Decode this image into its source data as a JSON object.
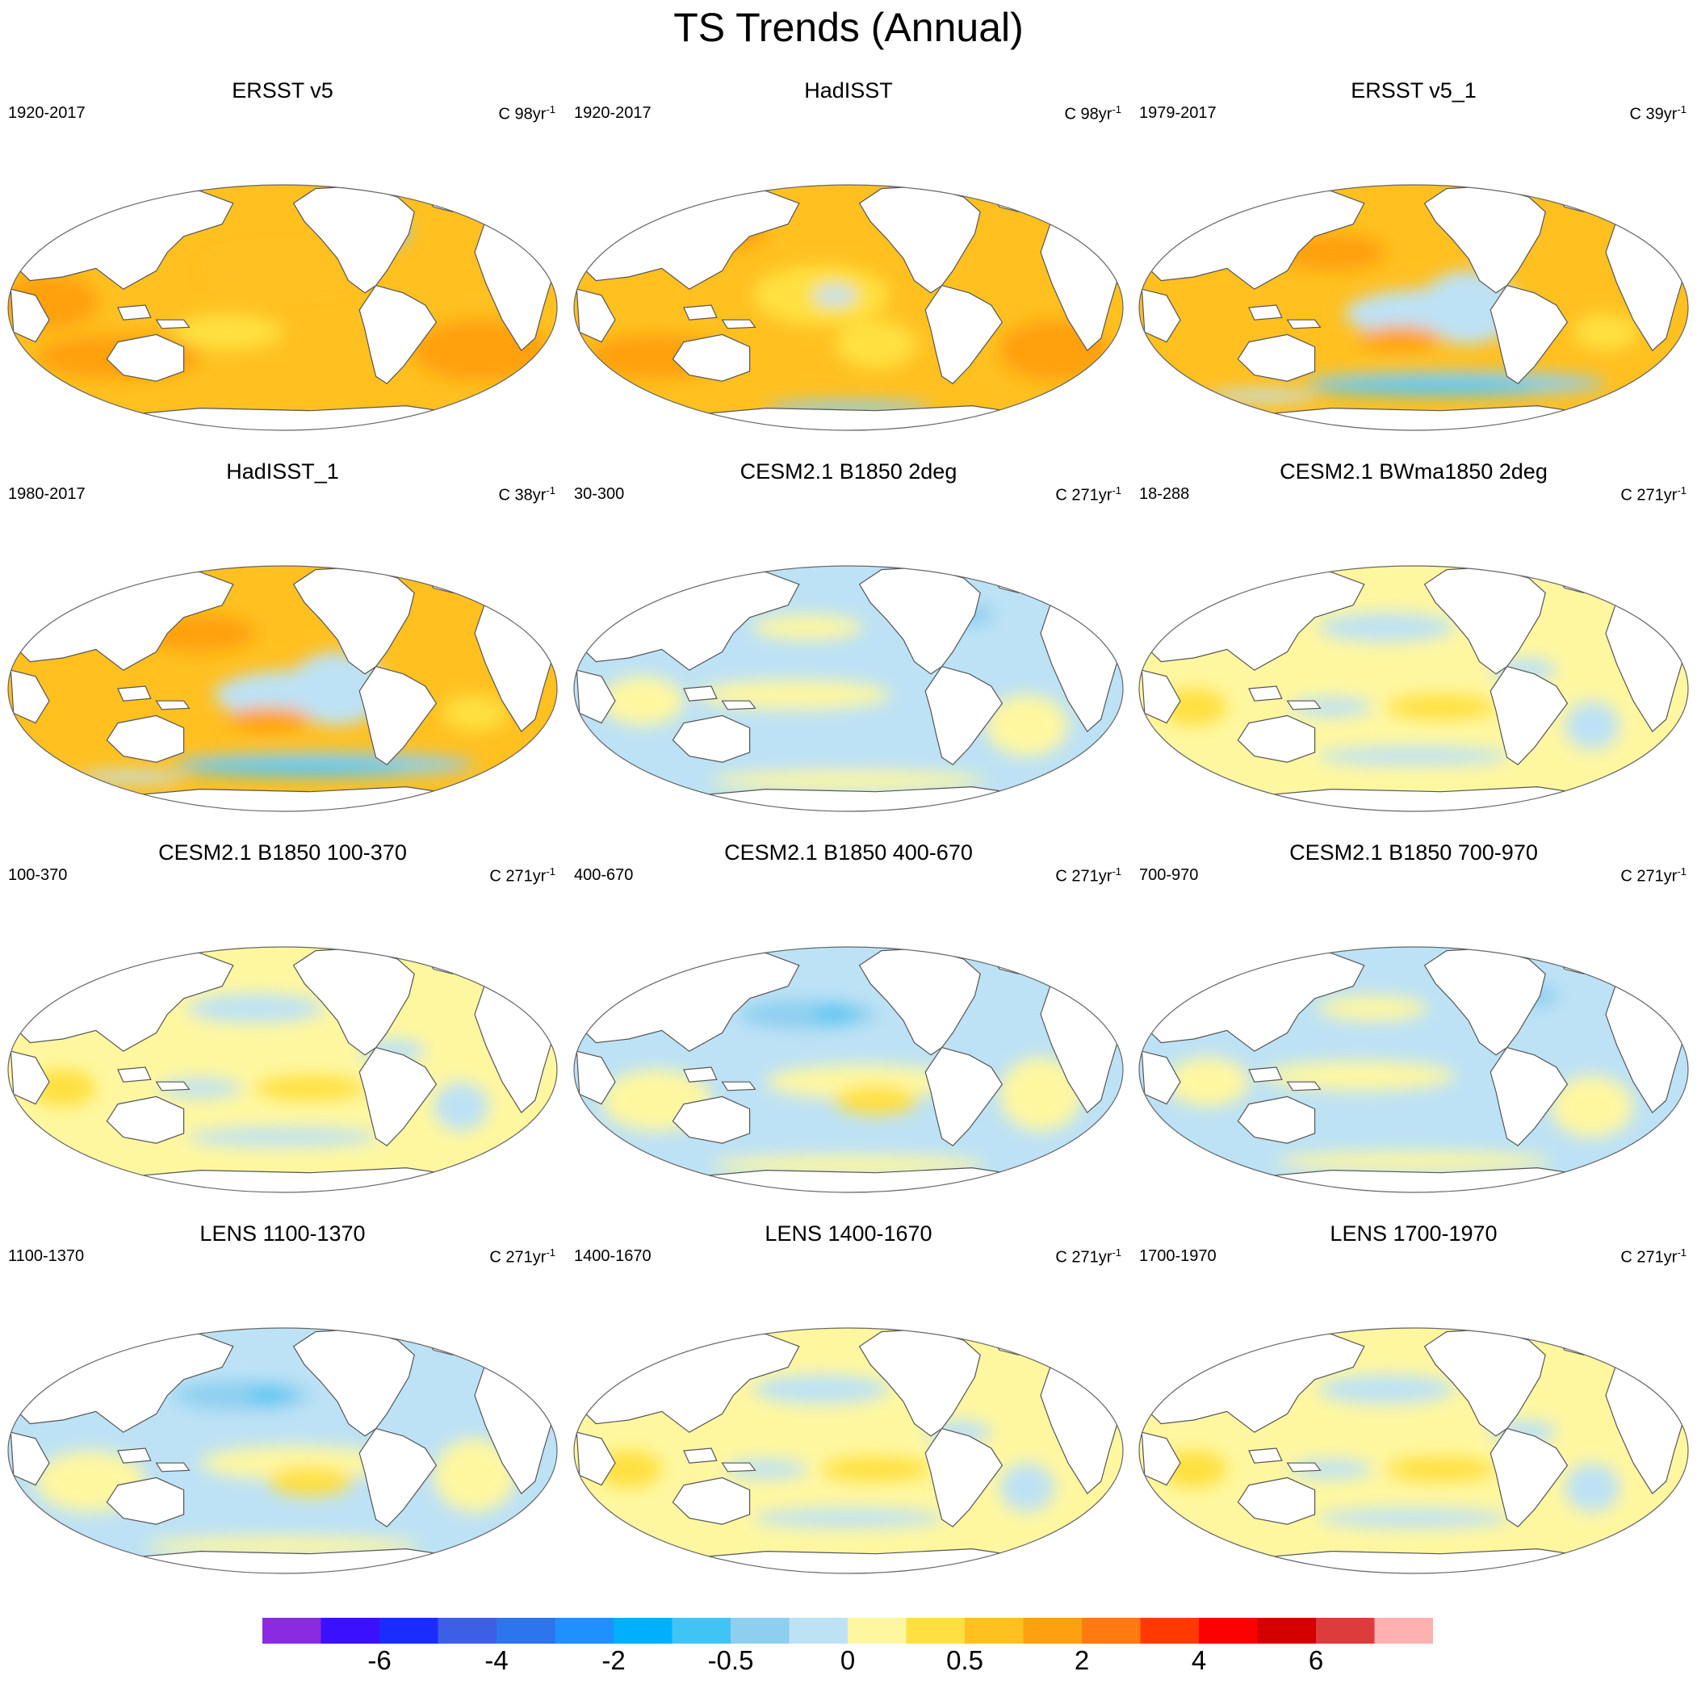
{
  "title": "TS Trends (Annual)",
  "panels": [
    {
      "title": "ERSST v5",
      "period": "1920-2017",
      "unit_prefix": "C 98yr",
      "unit_exp": "-1",
      "pattern": "warm-strong"
    },
    {
      "title": "HadISST",
      "period": "1920-2017",
      "unit_prefix": "C 98yr",
      "unit_exp": "-1",
      "pattern": "warm-noisy"
    },
    {
      "title": "ERSST v5_1",
      "period": "1979-2017",
      "unit_prefix": "C 39yr",
      "unit_exp": "-1",
      "pattern": "warm-cool-south"
    },
    {
      "title": "HadISST_1",
      "period": "1980-2017",
      "unit_prefix": "C 38yr",
      "unit_exp": "-1",
      "pattern": "warm-cool-south"
    },
    {
      "title": "CESM2.1 B1850 2deg",
      "period": "30-300",
      "unit_prefix": "C 271yr",
      "unit_exp": "-1",
      "pattern": "neutral-cool"
    },
    {
      "title": "CESM2.1 BWma1850 2deg",
      "period": "18-288",
      "unit_prefix": "C 271yr",
      "unit_exp": "-1",
      "pattern": "neutral-warm"
    },
    {
      "title": "CESM2.1 B1850 100-370",
      "period": "100-370",
      "unit_prefix": "C 271yr",
      "unit_exp": "-1",
      "pattern": "neutral-warm"
    },
    {
      "title": "CESM2.1 B1850 400-670",
      "period": "400-670",
      "unit_prefix": "C 271yr",
      "unit_exp": "-1",
      "pattern": "neutral-cool-np"
    },
    {
      "title": "CESM2.1 B1850 700-970",
      "period": "700-970",
      "unit_prefix": "C 271yr",
      "unit_exp": "-1",
      "pattern": "neutral-cool"
    },
    {
      "title": "LENS 1100-1370",
      "period": "1100-1370",
      "unit_prefix": "C 271yr",
      "unit_exp": "-1",
      "pattern": "neutral-cool-np"
    },
    {
      "title": "LENS 1400-1670",
      "period": "1400-1670",
      "unit_prefix": "C 271yr",
      "unit_exp": "-1",
      "pattern": "neutral-warm"
    },
    {
      "title": "LENS 1700-1970",
      "period": "1700-1970",
      "unit_prefix": "C 271yr",
      "unit_exp": "-1",
      "pattern": "neutral-warm"
    }
  ],
  "colorbar": {
    "colors": [
      "#8a2be2",
      "#3a10ff",
      "#1a2cff",
      "#3c5fe6",
      "#2c75ee",
      "#1e90ff",
      "#00b0ff",
      "#40c4f6",
      "#8ecfef",
      "#bde2f5",
      "#fff7a0",
      "#ffe040",
      "#ffc020",
      "#ffa010",
      "#ff7a10",
      "#ff3a00",
      "#ff0000",
      "#d40000",
      "#dc3c3c",
      "#ffb0b0"
    ],
    "labels": [
      {
        "text": "-6",
        "boundary": 2
      },
      {
        "text": "-4",
        "boundary": 4
      },
      {
        "text": "-2",
        "boundary": 6
      },
      {
        "text": "-0.5",
        "boundary": 8
      },
      {
        "text": "0",
        "boundary": 10
      },
      {
        "text": "0.5",
        "boundary": 12
      },
      {
        "text": "2",
        "boundary": 14
      },
      {
        "text": "4",
        "boundary": 16
      },
      {
        "text": "6",
        "boundary": 18
      }
    ]
  },
  "palette": {
    "land": "#ffffff",
    "coast": "#555555",
    "cool_light": "#bde2f5",
    "cool_mid": "#8ecfef",
    "cool_strong": "#40c4f6",
    "neutral_warm": "#fff7a0",
    "warm_light": "#ffe040",
    "warm_mid": "#ffc020",
    "warm_strong": "#ffa010"
  }
}
